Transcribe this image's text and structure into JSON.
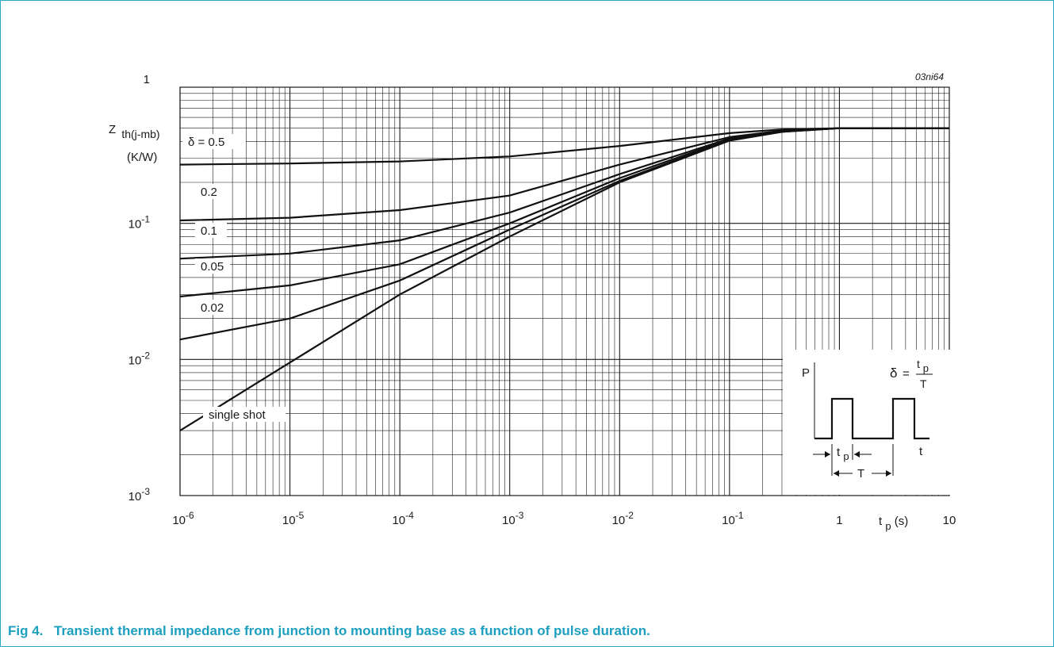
{
  "chart_data": {
    "type": "line",
    "figure_id": "03ni64",
    "caption_number": "Fig 4.",
    "caption_text": "Transient thermal impedance from junction to mounting base as a function of pulse duration.",
    "y_label_main": "Z",
    "y_label_sub": "th(j-mb)",
    "y_unit": "(K/W)",
    "x_label_main": "t",
    "x_label_sub": "p",
    "x_label_unit": "(s)",
    "x_scale": "log",
    "y_scale": "log",
    "xlim": [
      1e-06,
      10
    ],
    "ylim": [
      0.001,
      1
    ],
    "grid": true,
    "x_ticks": [
      {
        "value": 1e-06,
        "base": "10",
        "exp": "-6"
      },
      {
        "value": 1e-05,
        "base": "10",
        "exp": "-5"
      },
      {
        "value": 0.0001,
        "base": "10",
        "exp": "-4"
      },
      {
        "value": 0.001,
        "base": "10",
        "exp": "-3"
      },
      {
        "value": 0.01,
        "base": "10",
        "exp": "-2"
      },
      {
        "value": 0.1,
        "base": "10",
        "exp": "-1"
      },
      {
        "value": 1,
        "base": "1",
        "exp": ""
      },
      {
        "value": 10,
        "base": "10",
        "exp": ""
      }
    ],
    "y_ticks": [
      {
        "value": 1,
        "base": "1",
        "exp": ""
      },
      {
        "value": 0.1,
        "base": "10",
        "exp": "-1"
      },
      {
        "value": 0.01,
        "base": "10",
        "exp": "-2"
      },
      {
        "value": 0.001,
        "base": "10",
        "exp": "-3"
      }
    ],
    "series": [
      {
        "name": "δ = 0.5",
        "x": [
          1e-06,
          1e-05,
          0.0001,
          0.001,
          0.01,
          0.1,
          0.3,
          1,
          10
        ],
        "y": [
          0.27,
          0.275,
          0.285,
          0.31,
          0.37,
          0.46,
          0.49,
          0.5,
          0.5
        ]
      },
      {
        "name": "0.2",
        "x": [
          1e-06,
          1e-05,
          0.0001,
          0.001,
          0.01,
          0.1,
          0.3,
          1,
          10
        ],
        "y": [
          0.105,
          0.11,
          0.125,
          0.16,
          0.27,
          0.43,
          0.48,
          0.5,
          0.5
        ]
      },
      {
        "name": "0.1",
        "x": [
          1e-06,
          1e-05,
          0.0001,
          0.001,
          0.01,
          0.1,
          0.3,
          1,
          10
        ],
        "y": [
          0.055,
          0.06,
          0.075,
          0.12,
          0.23,
          0.42,
          0.475,
          0.5,
          0.5
        ]
      },
      {
        "name": "0.05",
        "x": [
          1e-06,
          1e-05,
          0.0001,
          0.001,
          0.01,
          0.1,
          0.3,
          1,
          10
        ],
        "y": [
          0.029,
          0.035,
          0.05,
          0.1,
          0.215,
          0.415,
          0.475,
          0.5,
          0.5
        ]
      },
      {
        "name": "0.02",
        "x": [
          1e-06,
          1e-05,
          0.0001,
          0.001,
          0.01,
          0.1,
          0.3,
          1,
          10
        ],
        "y": [
          0.014,
          0.02,
          0.038,
          0.09,
          0.205,
          0.41,
          0.47,
          0.5,
          0.5
        ]
      },
      {
        "name": "single shot",
        "x": [
          1e-06,
          1e-05,
          0.0001,
          0.001,
          0.01,
          0.1,
          0.3,
          1,
          10
        ],
        "y": [
          0.003,
          0.0095,
          0.03,
          0.08,
          0.2,
          0.405,
          0.47,
          0.5,
          0.5
        ]
      }
    ],
    "inset": {
      "p_label": "P",
      "t_label": "t",
      "delta_symbol": "δ",
      "equals": "=",
      "numerator_main": "t",
      "numerator_sub": "p",
      "denominator": "T",
      "tp_main": "t",
      "tp_sub": "p",
      "period_label": "T"
    }
  }
}
